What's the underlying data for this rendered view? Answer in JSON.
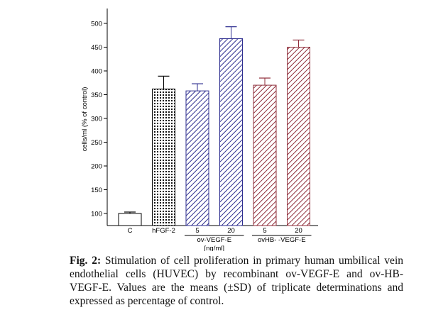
{
  "chart_data": {
    "type": "bar",
    "categories": [
      "C",
      "hFGF-2",
      "5",
      "20",
      "5",
      "20"
    ],
    "values": [
      100,
      362,
      358,
      468,
      370,
      450
    ],
    "errors": [
      3,
      27,
      15,
      25,
      15,
      15
    ],
    "fills": [
      "white",
      "dots",
      "hatch-blue",
      "hatch-blue",
      "hatch-red",
      "hatch-red"
    ],
    "group_labels": [
      {
        "label": "ov-VEGF-E",
        "categories": [
          2,
          3
        ]
      },
      {
        "label": "ovHB- -VEGF-E",
        "categories": [
          4,
          5
        ]
      }
    ],
    "unit_label": "[ng/ml]",
    "ylabel": "cells/ml (% of control)",
    "ylim": [
      90,
      520
    ],
    "yticks": [
      100,
      150,
      200,
      250,
      300,
      350,
      400,
      450,
      500
    ],
    "title": ""
  },
  "colors": {
    "axis": "#000000",
    "blue_hatch": "#2d2d8f",
    "red_hatch": "#8f2d3a",
    "dots": "#111111"
  },
  "caption": {
    "label": "Fig. 2:",
    "text": " Stimulation of cell proliferation in primary human umbilical vein endothelial cells (HUVEC) by recombinant ov-VEGF-E and ov-HB-VEGF-E. Values are the means (±SD) of triplicate determinations and expressed as percentage of control."
  }
}
